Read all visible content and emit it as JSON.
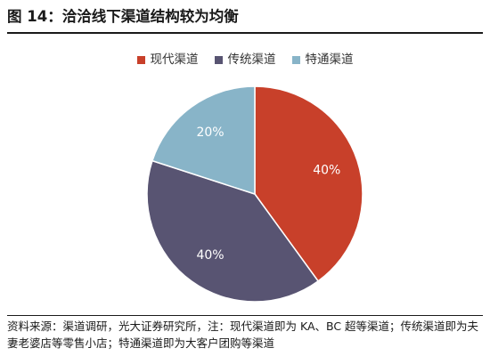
{
  "figure": {
    "title": "图 14：洽洽线下渠道结构较为均衡",
    "source": "资料来源：渠道调研，光大证券研究所，注：现代渠道即为 KA、BC 超等渠道；传统渠道即为夫妻老婆店等零售小店；特通渠道即为大客户团购等渠道"
  },
  "chart_data": {
    "type": "pie",
    "title": "",
    "legend_position": "top",
    "start_angle_deg": 0,
    "direction": "clockwise",
    "slices": [
      {
        "name": "现代渠道",
        "value": 40,
        "label": "40%",
        "color": "#c8402a"
      },
      {
        "name": "传统渠道",
        "value": 40,
        "label": "40%",
        "color": "#585472"
      },
      {
        "name": "特通渠道",
        "value": 20,
        "label": "20%",
        "color": "#88b4c8"
      }
    ]
  }
}
